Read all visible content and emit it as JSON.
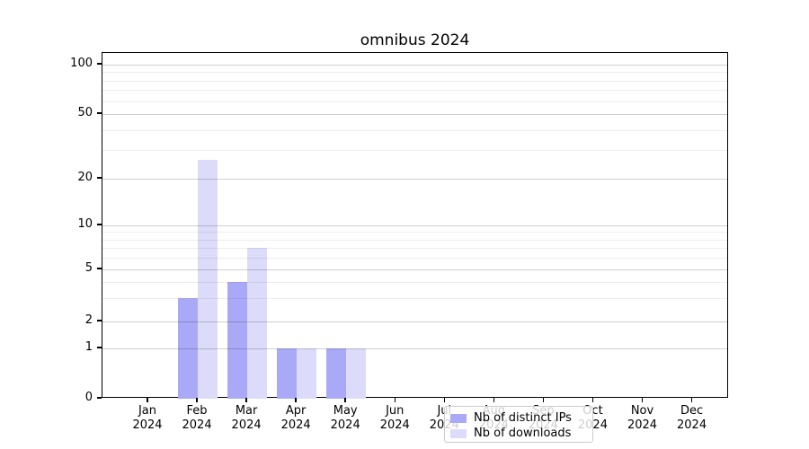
{
  "chart_data": {
    "type": "bar",
    "title": "omnibus 2024",
    "categories": [
      "Jan",
      "Feb",
      "Mar",
      "Apr",
      "May",
      "Jun",
      "Jul",
      "Aug",
      "Sep",
      "Oct",
      "Nov",
      "Dec"
    ],
    "year_label": "2024",
    "series": [
      {
        "name": "Nb of distinct IPs",
        "color": "#aaa9f7",
        "values": [
          0,
          3,
          4,
          1,
          1,
          0,
          0,
          0,
          0,
          0,
          0,
          0
        ]
      },
      {
        "name": "Nb of downloads",
        "color": "#dcdcfa",
        "values": [
          0,
          26,
          7,
          1,
          1,
          0,
          0,
          0,
          0,
          0,
          0,
          0
        ]
      }
    ],
    "y_axis": {
      "scale": "log above 1, linear 0-1",
      "ticks": [
        0,
        1,
        2,
        5,
        10,
        20,
        50,
        100
      ],
      "minor_gridlines": [
        3,
        4,
        6,
        7,
        8,
        9,
        30,
        40,
        60,
        70,
        80,
        90
      ]
    },
    "legend": {
      "position": "lower center",
      "entries": [
        "Nb of distinct IPs",
        "Nb of downloads"
      ]
    },
    "grid": {
      "major_color": "#cecece",
      "minor_color": "#ededed"
    },
    "colors": {
      "spine": "#000000",
      "background": "#ffffff"
    }
  }
}
